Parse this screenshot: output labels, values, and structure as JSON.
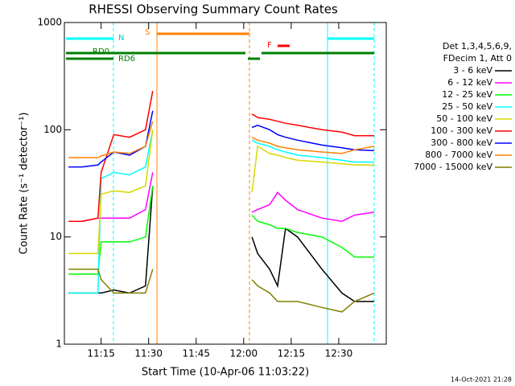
{
  "chart_data": {
    "type": "line",
    "title": "RHESSI Observing Summary Count Rates",
    "x_label": "Start Time (10-Apr-06 11:03:22)",
    "y_label": "Count Rate (s⁻¹ detector⁻¹)",
    "legend_header": [
      "Det 1,3,4,5,6,9,",
      "FDecim 1, Att 0"
    ],
    "footer": "14-Oct-2021 21:28",
    "annotations": [
      "N",
      "S",
      "F",
      "RD0",
      "RD6"
    ],
    "log_y": true,
    "xlim": [
      663.4,
      765
    ],
    "xticks": [
      {
        "value": 675,
        "label": "11:15"
      },
      {
        "value": 690,
        "label": "11:30"
      },
      {
        "value": 705,
        "label": "11:45"
      },
      {
        "value": 720,
        "label": "12:00"
      },
      {
        "value": 735,
        "label": "12:15"
      },
      {
        "value": 750,
        "label": "12:30"
      }
    ],
    "ylim": [
      1,
      1000
    ],
    "yticks": [
      1,
      10,
      100,
      1000
    ],
    "x": [
      664.7,
      669,
      674,
      675,
      679,
      684,
      689,
      691.3,
      705,
      722.6,
      724.4,
      728.2,
      730.7,
      733.2,
      737,
      744.7,
      751,
      755,
      761.2
    ],
    "series": [
      {
        "name": "3 - 6 keV",
        "color": "#000000",
        "values": [
          3,
          3,
          3,
          3,
          3.2,
          3,
          3.5,
          30,
          null,
          10,
          7,
          5,
          3.5,
          12,
          10,
          5,
          3,
          2.5,
          2.5
        ]
      },
      {
        "name": "6 - 12 keV",
        "color": "#ff00ff",
        "values": [
          14,
          14,
          15,
          15,
          15,
          15,
          18,
          40,
          null,
          17,
          18,
          20,
          26,
          22,
          18,
          15,
          14,
          16,
          17
        ]
      },
      {
        "name": "12 - 25 keV",
        "color": "#00ff00",
        "values": [
          4.5,
          4.5,
          4.5,
          9,
          9,
          9,
          10,
          30,
          null,
          16,
          14,
          13,
          12,
          12,
          11,
          10,
          8,
          6.5,
          6.5
        ]
      },
      {
        "name": "25 - 50 keV",
        "color": "#00ffff",
        "values": [
          3,
          3,
          3,
          35,
          40,
          38,
          45,
          100,
          null,
          80,
          75,
          70,
          65,
          62,
          58,
          55,
          52,
          50,
          50
        ]
      },
      {
        "name": "50 - 100 keV",
        "color": "#d8d800",
        "values": [
          7,
          7,
          7,
          25,
          27,
          26,
          30,
          100,
          null,
          26,
          70,
          60,
          58,
          55,
          52,
          50,
          48,
          47,
          47
        ]
      },
      {
        "name": "100 - 300 keV",
        "color": "#ff0000",
        "values": [
          14,
          14,
          15,
          40,
          90,
          85,
          100,
          230,
          null,
          140,
          130,
          125,
          120,
          115,
          110,
          100,
          95,
          88,
          88
        ]
      },
      {
        "name": "300 - 800 keV",
        "color": "#0000ff",
        "values": [
          45,
          45,
          47,
          50,
          62,
          58,
          70,
          150,
          null,
          105,
          110,
          100,
          90,
          85,
          80,
          72,
          68,
          65,
          64
        ]
      },
      {
        "name": "800 - 7000 keV",
        "color": "#ff8000",
        "values": [
          55,
          55,
          55,
          57,
          62,
          60,
          70,
          120,
          null,
          85,
          80,
          75,
          70,
          68,
          65,
          62,
          60,
          65,
          70
        ]
      },
      {
        "name": "7000 - 15000 keV",
        "color": "#808000",
        "values": [
          5,
          5,
          5,
          4,
          3,
          3,
          3,
          5,
          null,
          4,
          3.5,
          3,
          2.5,
          2.5,
          2.5,
          2.2,
          2,
          2.5,
          3
        ]
      }
    ]
  }
}
